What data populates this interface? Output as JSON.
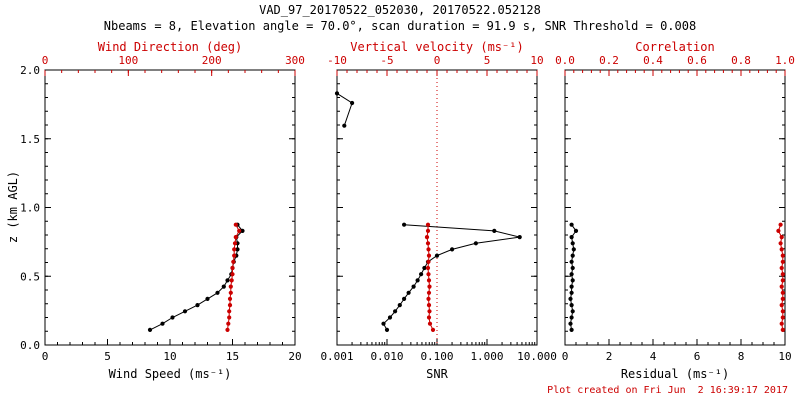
{
  "header": {
    "title": "VAD_97_20170522_052030, 20170522.052128",
    "subtitle": "Nbeams = 8, Elevation angle = 70.0°, scan duration = 91.9 s, SNR Threshold = 0.008"
  },
  "footer": {
    "created": "Plot created on Fri Jun  2 16:39:17 2017"
  },
  "colors": {
    "accent_red": "#cc0000",
    "line_black": "#000000",
    "background": "#ffffff"
  },
  "ylabel": "z (km AGL)",
  "chart_data": [
    {
      "type": "line",
      "name": "wind-panel",
      "xlabel_bottom": "Wind Speed (ms⁻¹)",
      "xlabel_top": "Wind Direction (deg)",
      "x_bottom": {
        "range": [
          0,
          20
        ],
        "scale": "linear",
        "ticks": [
          0,
          5,
          10,
          15,
          20
        ],
        "tick_labels": [
          "0",
          "5",
          "10",
          "15",
          "20"
        ],
        "minor": 5
      },
      "x_top": {
        "range": [
          0,
          300
        ],
        "scale": "linear",
        "ticks": [
          0,
          100,
          200,
          300
        ],
        "tick_labels": [
          "0",
          "100",
          "200",
          "300"
        ],
        "minor": 5
      },
      "y": {
        "range": [
          0,
          2
        ],
        "ticks": [
          0,
          0.5,
          1,
          1.5,
          2
        ],
        "tick_labels": [
          "0.0",
          "0.5",
          "1.0",
          "1.5",
          "2.0"
        ],
        "minor": 5,
        "show_labels": true
      },
      "series": [
        {
          "name": "wind-speed",
          "axis": "bottom",
          "color": "#000000",
          "z": [
            0.11,
            0.155,
            0.2,
            0.245,
            0.29,
            0.335,
            0.38,
            0.425,
            0.47,
            0.515,
            0.56,
            0.605,
            0.65,
            0.695,
            0.74,
            0.785,
            0.83,
            0.875
          ],
          "values": [
            8.4,
            9.4,
            10.2,
            11.2,
            12.2,
            13.0,
            13.8,
            14.3,
            14.6,
            14.9,
            15.0,
            15.1,
            15.3,
            15.4,
            15.4,
            15.3,
            15.8,
            15.4
          ]
        },
        {
          "name": "wind-direction",
          "axis": "top",
          "color": "#cc0000",
          "z": [
            0.11,
            0.155,
            0.2,
            0.245,
            0.29,
            0.335,
            0.38,
            0.425,
            0.47,
            0.515,
            0.56,
            0.605,
            0.65,
            0.695,
            0.74,
            0.785,
            0.83,
            0.875
          ],
          "values": [
            219,
            220,
            221,
            221,
            222,
            222,
            223,
            223,
            224,
            225,
            225,
            226,
            227,
            227,
            228,
            229,
            233,
            229
          ]
        }
      ]
    },
    {
      "type": "line",
      "name": "snr-panel",
      "xlabel_bottom": "SNR",
      "xlabel_top": "Vertical velocity (ms⁻¹)",
      "x_bottom": {
        "range": [
          0.001,
          10
        ],
        "scale": "log",
        "ticks": [
          0.001,
          0.01,
          0.1,
          1,
          10
        ],
        "tick_labels": [
          "0.001",
          "0.010",
          "0.100",
          "1.000",
          "10.000"
        ]
      },
      "x_top": {
        "range": [
          -10,
          10
        ],
        "scale": "linear",
        "ticks": [
          -10,
          -5,
          0,
          5,
          10
        ],
        "tick_labels": [
          "-10",
          "-5",
          "0",
          "5",
          "10"
        ],
        "minor": 5
      },
      "y": {
        "range": [
          0,
          2
        ],
        "ticks": [
          0,
          0.5,
          1,
          1.5,
          2
        ],
        "tick_labels": [
          "0.0",
          "0.5",
          "1.0",
          "1.5",
          "2.0"
        ],
        "minor": 5,
        "show_labels": false
      },
      "reflines": [
        {
          "axis": "top",
          "value": 0,
          "color": "#cc0000",
          "style": "dotted"
        }
      ],
      "series": [
        {
          "name": "snr-upper",
          "axis": "bottom",
          "color": "#000000",
          "z": [
            1.83,
            1.76,
            1.595
          ],
          "values": [
            0.001,
            0.002,
            0.0014
          ]
        },
        {
          "name": "snr",
          "axis": "bottom",
          "color": "#000000",
          "z": [
            0.11,
            0.155,
            0.2,
            0.245,
            0.29,
            0.335,
            0.38,
            0.425,
            0.47,
            0.515,
            0.56,
            0.605,
            0.65,
            0.695,
            0.74,
            0.785,
            0.83,
            0.875
          ],
          "values": [
            0.01,
            0.0085,
            0.0115,
            0.0145,
            0.018,
            0.022,
            0.027,
            0.034,
            0.041,
            0.048,
            0.056,
            0.066,
            0.1,
            0.2,
            0.6,
            4.5,
            1.4,
            0.022
          ]
        },
        {
          "name": "vertical-velocity",
          "axis": "top",
          "color": "#cc0000",
          "z": [
            0.11,
            0.155,
            0.2,
            0.245,
            0.29,
            0.335,
            0.38,
            0.425,
            0.47,
            0.515,
            0.56,
            0.605,
            0.65,
            0.695,
            0.74,
            0.785,
            0.83,
            0.875
          ],
          "values": [
            -0.4,
            -0.7,
            -0.8,
            -0.75,
            -0.8,
            -0.85,
            -0.8,
            -0.75,
            -0.8,
            -0.85,
            -0.9,
            -0.85,
            -0.8,
            -0.85,
            -0.9,
            -1.0,
            -0.9,
            -0.9
          ]
        }
      ]
    },
    {
      "type": "line",
      "name": "residual-panel",
      "xlabel_bottom": "Residual (ms⁻¹)",
      "xlabel_top": "Correlation",
      "x_bottom": {
        "range": [
          0,
          10
        ],
        "scale": "linear",
        "ticks": [
          0,
          2,
          4,
          6,
          8,
          10
        ],
        "tick_labels": [
          "0",
          "2",
          "4",
          "6",
          "8",
          "10"
        ],
        "minor": 4
      },
      "x_top": {
        "range": [
          0,
          1
        ],
        "scale": "linear",
        "ticks": [
          0,
          0.2,
          0.4,
          0.6,
          0.8,
          1.0
        ],
        "tick_labels": [
          "0.0",
          "0.2",
          "0.4",
          "0.6",
          "0.8",
          "1.0"
        ],
        "minor": 5
      },
      "y": {
        "range": [
          0,
          2
        ],
        "ticks": [
          0,
          0.5,
          1,
          1.5,
          2
        ],
        "tick_labels": [
          "0.0",
          "0.5",
          "1.0",
          "1.5",
          "2.0"
        ],
        "minor": 5,
        "show_labels": false
      },
      "series": [
        {
          "name": "residual",
          "axis": "bottom",
          "color": "#000000",
          "z": [
            0.11,
            0.155,
            0.2,
            0.245,
            0.29,
            0.335,
            0.38,
            0.425,
            0.47,
            0.515,
            0.56,
            0.605,
            0.65,
            0.695,
            0.74,
            0.785,
            0.83,
            0.875
          ],
          "values": [
            0.3,
            0.25,
            0.3,
            0.35,
            0.3,
            0.25,
            0.3,
            0.3,
            0.35,
            0.3,
            0.35,
            0.3,
            0.35,
            0.4,
            0.35,
            0.3,
            0.5,
            0.3
          ]
        },
        {
          "name": "correlation",
          "axis": "top",
          "color": "#cc0000",
          "z": [
            0.11,
            0.155,
            0.2,
            0.245,
            0.29,
            0.335,
            0.38,
            0.425,
            0.47,
            0.515,
            0.56,
            0.605,
            0.65,
            0.695,
            0.74,
            0.785,
            0.83,
            0.875
          ],
          "values": [
            0.99,
            0.985,
            0.99,
            0.99,
            0.985,
            0.99,
            0.99,
            0.985,
            0.99,
            0.99,
            0.985,
            0.99,
            0.99,
            0.985,
            0.98,
            0.985,
            0.97,
            0.98
          ]
        }
      ]
    }
  ]
}
